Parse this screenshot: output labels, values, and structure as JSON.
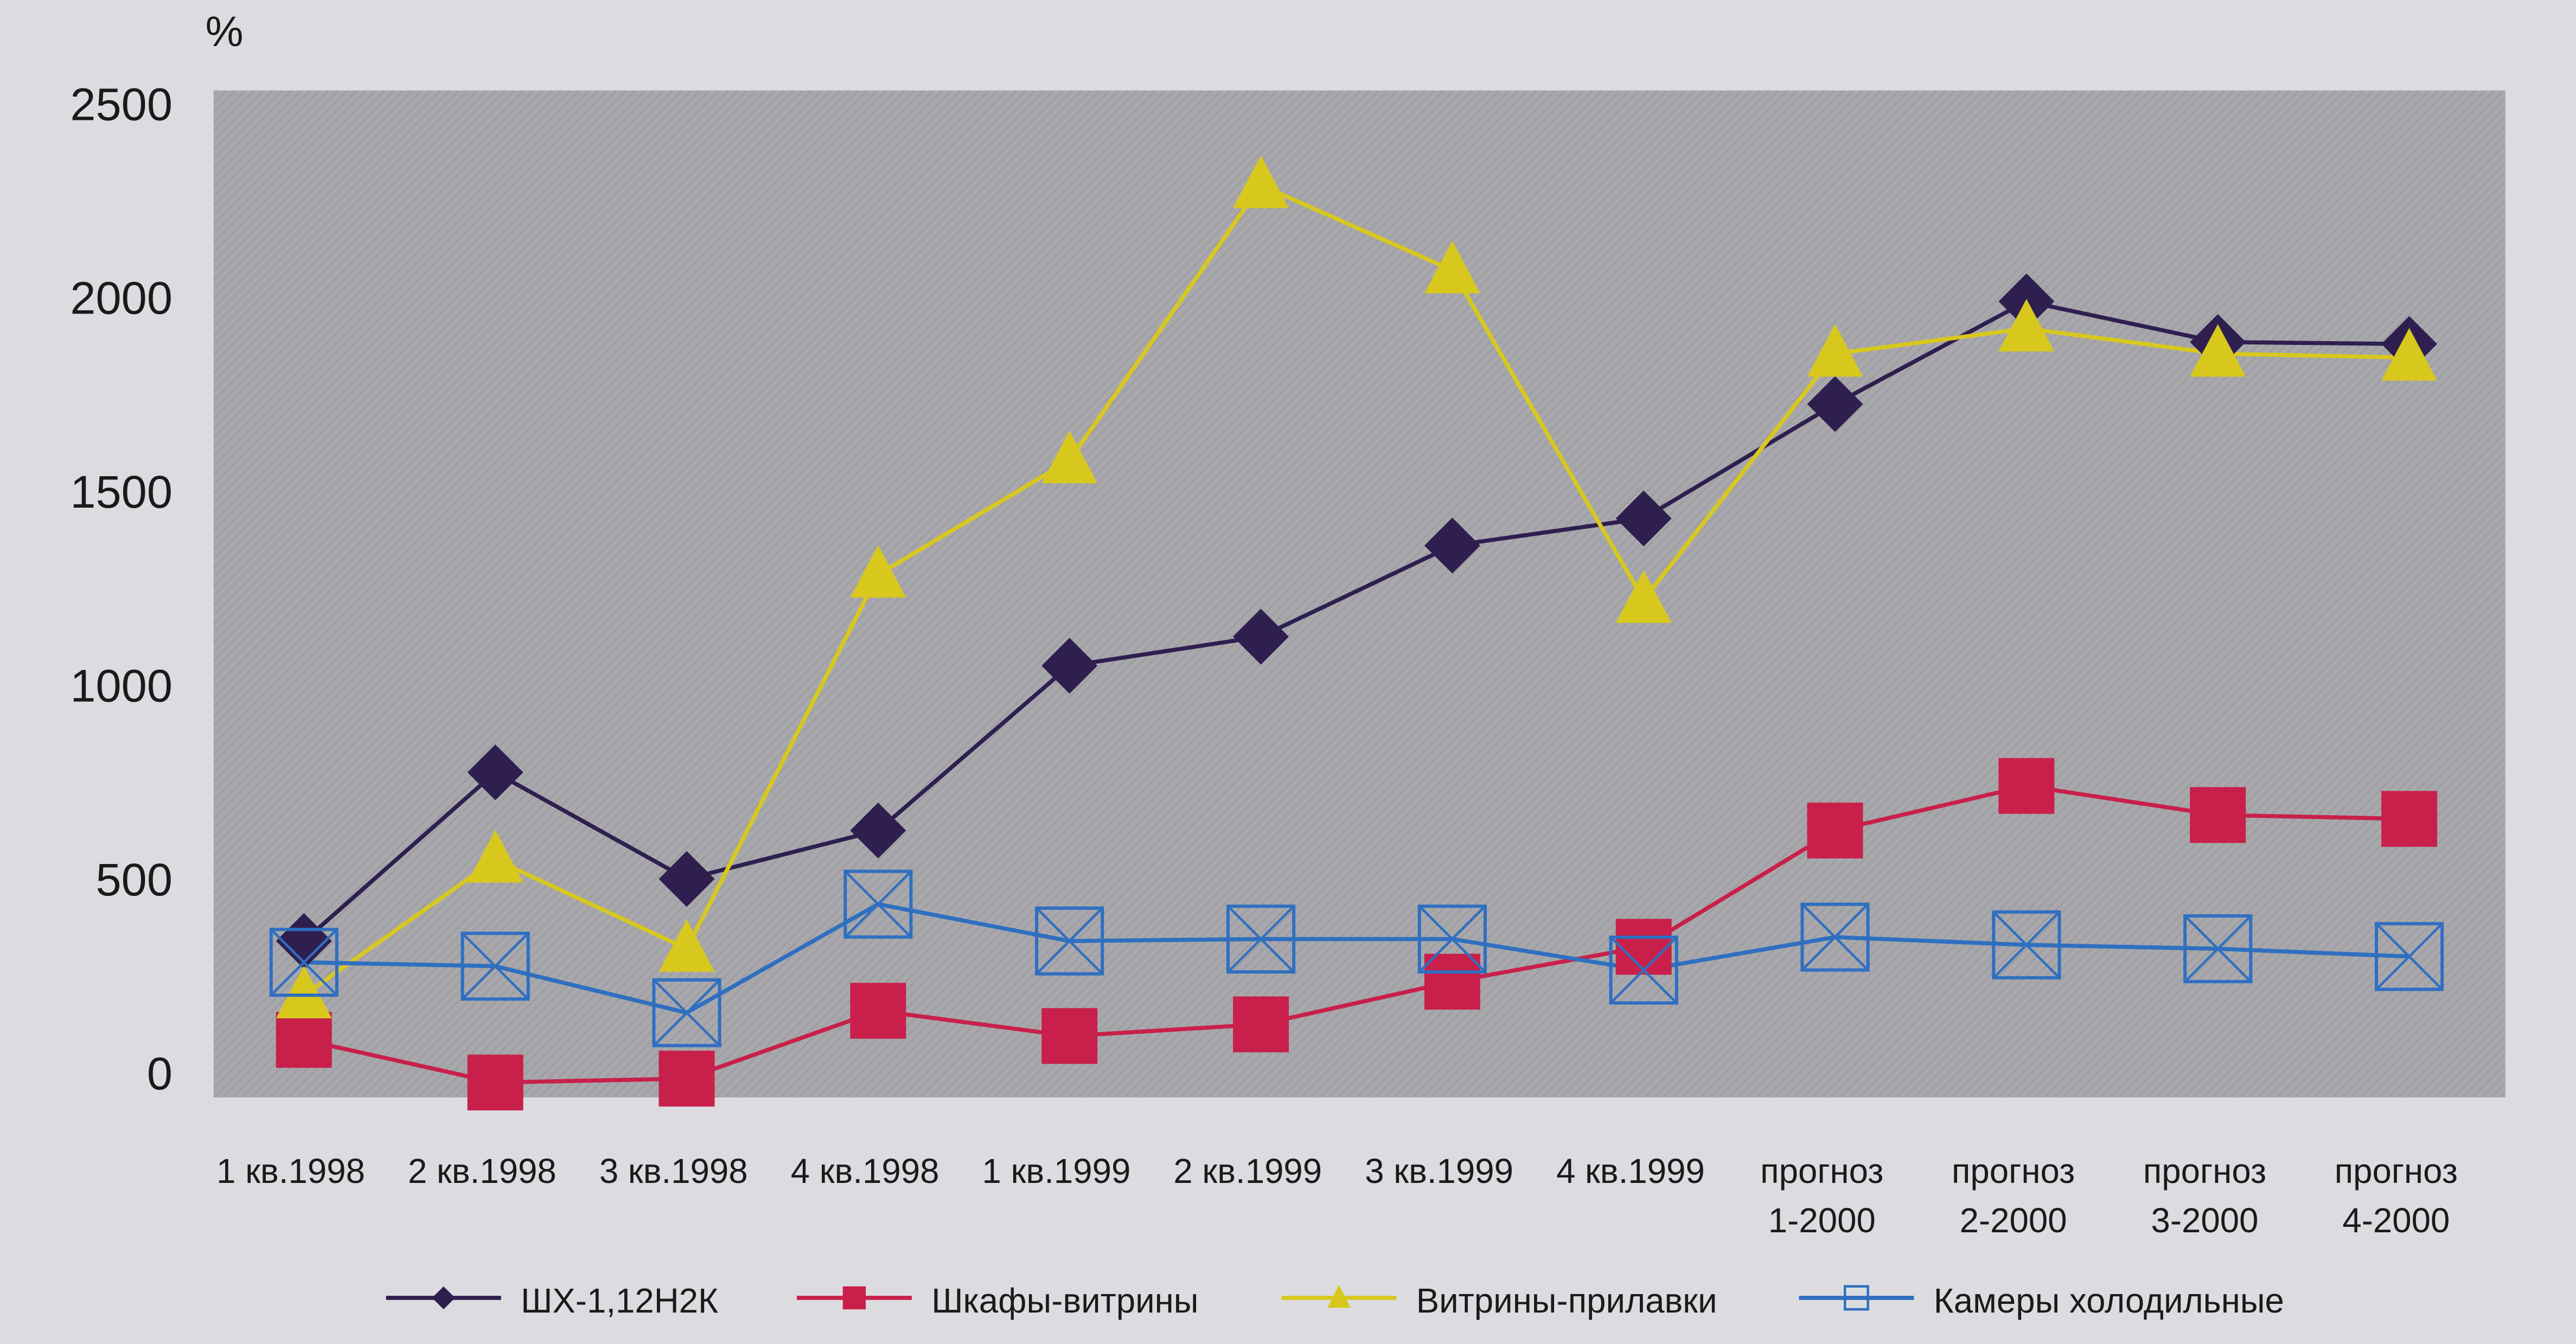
{
  "chart_data": {
    "type": "line",
    "title": "",
    "ylabel": "%",
    "xlabel": "",
    "ylim": [
      0,
      2500
    ],
    "yticks": [
      0,
      500,
      1000,
      1500,
      2000,
      2500
    ],
    "grid": false,
    "legend_placement": "bottom",
    "categories": [
      [
        "1 кв.1998"
      ],
      [
        "2 кв.1998"
      ],
      [
        "3 кв.1998"
      ],
      [
        "4 кв.1998"
      ],
      [
        "1 кв.1999"
      ],
      [
        "2 кв.1999"
      ],
      [
        "3 кв.1999"
      ],
      [
        "4 кв.1999"
      ],
      [
        "прогноз",
        "1-2000"
      ],
      [
        "прогноз",
        "2-2000"
      ],
      [
        "прогноз",
        "3-2000"
      ],
      [
        "прогноз",
        "4-2000"
      ]
    ],
    "series": [
      {
        "name": "ШХ-1,12Н2К",
        "color": "#2e1f4f",
        "marker": "diamond",
        "values": [
          340,
          775,
          500,
          625,
          1050,
          1125,
          1360,
          1430,
          1725,
          1990,
          1885,
          1880
        ]
      },
      {
        "name": "Шкафы-витрины",
        "color": "#c8204a",
        "marker": "square",
        "values": [
          85,
          -25,
          -15,
          160,
          95,
          125,
          235,
          325,
          625,
          740,
          665,
          655
        ]
      },
      {
        "name": "Витрины-прилавки",
        "color": "#d8c81e",
        "marker": "triangle",
        "values": [
          200,
          550,
          320,
          1285,
          1580,
          2290,
          2070,
          1220,
          1855,
          1920,
          1855,
          1845
        ]
      },
      {
        "name": "Камеры холодильные",
        "color": "#2f6fc0",
        "marker": "square-x",
        "values": [
          285,
          275,
          155,
          435,
          340,
          345,
          345,
          265,
          350,
          330,
          320,
          300
        ]
      }
    ]
  }
}
